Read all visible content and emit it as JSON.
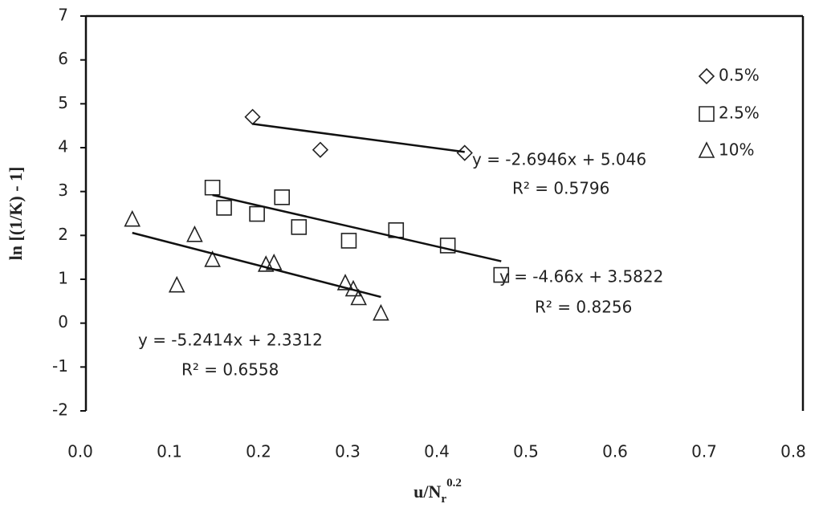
{
  "chart_data": {
    "type": "scatter",
    "xlabel": {
      "base": "u/N",
      "sub": "r",
      "sup": "0.2"
    },
    "ylabel": "ln [(1/K) - 1]",
    "xlim": [
      0,
      0.8
    ],
    "ylim": [
      -2,
      7
    ],
    "xticks": [
      {
        "value": 0,
        "label": "0.0"
      },
      0.1,
      0.2,
      0.3,
      0.4,
      0.5,
      0.6,
      0.7,
      0.8
    ],
    "yticks": [
      -2,
      -1,
      0,
      1,
      2,
      3,
      4,
      5,
      6,
      7
    ],
    "legend": "top-right",
    "series": [
      {
        "name": "0.5%",
        "marker": "diamond",
        "color": "#222",
        "x": [
          0.187,
          0.263,
          0.425
        ],
        "values": [
          4.7,
          3.95,
          3.88
        ],
        "trendline": {
          "slope": -2.6946,
          "intercept": 5.046,
          "label": "y = -2.6946x + 5.046",
          "r2_label": "R² = 0.5796"
        }
      },
      {
        "name": "2.5%",
        "marker": "square",
        "color": "#222",
        "x": [
          0.142,
          0.155,
          0.192,
          0.22,
          0.239,
          0.295,
          0.348,
          0.406,
          0.466
        ],
        "values": [
          3.09,
          2.63,
          2.49,
          2.87,
          2.19,
          1.88,
          2.12,
          1.77,
          1.1
        ],
        "trendline": {
          "slope": -4.66,
          "intercept": 3.5822,
          "label": "y = -4.66x + 3.5822",
          "r2_label": "R² = 0.8256"
        }
      },
      {
        "name": "10%",
        "marker": "triangle",
        "color": "#222",
        "x": [
          0.052,
          0.102,
          0.122,
          0.142,
          0.202,
          0.211,
          0.291,
          0.3,
          0.306,
          0.331
        ],
        "values": [
          2.36,
          0.86,
          2.01,
          1.44,
          1.33,
          1.37,
          0.91,
          0.77,
          0.57,
          0.22
        ],
        "trendline": {
          "slope": -5.2414,
          "intercept": 2.3312,
          "label": "y = -5.2414x + 2.3312",
          "r2_label": "R² = 0.6558"
        }
      }
    ]
  }
}
